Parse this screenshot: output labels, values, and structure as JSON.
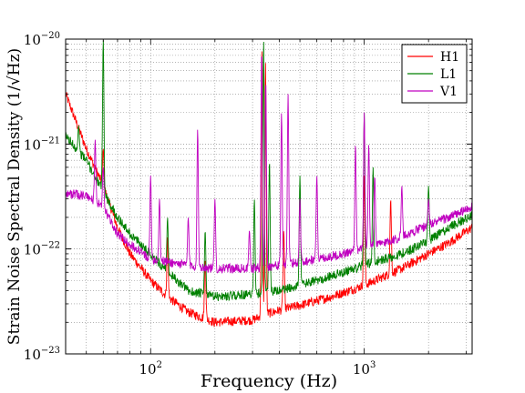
{
  "chart_data": {
    "type": "line",
    "xlabel": "Frequency (Hz)",
    "ylabel": "Strain Noise Spectral Density (1/√Hz)",
    "x_scale": "log",
    "y_scale": "log",
    "xlim": [
      40,
      3200
    ],
    "ylim": [
      1e-23,
      1e-20
    ],
    "x_ticks": [
      {
        "value": 100,
        "label": "10",
        "exp": "2"
      },
      {
        "value": 1000,
        "label": "10",
        "exp": "3"
      }
    ],
    "y_ticks": [
      {
        "value": 1e-23,
        "label": "10",
        "exp": "−23"
      },
      {
        "value": 1e-22,
        "label": "10",
        "exp": "−22"
      },
      {
        "value": 1e-21,
        "label": "10",
        "exp": "−21"
      },
      {
        "value": 1e-20,
        "label": "10",
        "exp": "−20"
      }
    ],
    "grid": true,
    "legend_position": "top-right",
    "series": [
      {
        "name": "H1",
        "color": "#ff0000",
        "points": [
          [
            40,
            3e-21
          ],
          [
            50,
            9e-22
          ],
          [
            60,
            4e-22
          ],
          [
            70,
            1.6e-22
          ],
          [
            80,
            9e-23
          ],
          [
            100,
            5e-23
          ],
          [
            120,
            3.5e-23
          ],
          [
            150,
            2.5e-23
          ],
          [
            200,
            2e-23
          ],
          [
            300,
            2.1e-23
          ],
          [
            350,
            2.4e-23
          ],
          [
            400,
            2.6e-23
          ],
          [
            500,
            2.9e-23
          ],
          [
            700,
            3.5e-23
          ],
          [
            1000,
            4.5e-23
          ],
          [
            1500,
            6.5e-23
          ],
          [
            2000,
            9e-23
          ],
          [
            2500,
            1.15e-22
          ],
          [
            3200,
            1.6e-22
          ]
        ],
        "peaks": [
          [
            46,
            1.2e-21
          ],
          [
            60,
            9e-22
          ],
          [
            120,
            1.3e-22
          ],
          [
            180,
            8e-23
          ],
          [
            332,
            8e-21
          ],
          [
            345,
            6e-21
          ],
          [
            420,
            1.5e-22
          ],
          [
            1000,
            5e-22
          ],
          [
            1330,
            3e-22
          ]
        ]
      },
      {
        "name": "L1",
        "color": "#008000",
        "points": [
          [
            40,
            1.2e-21
          ],
          [
            50,
            7e-22
          ],
          [
            60,
            3.5e-22
          ],
          [
            70,
            2e-22
          ],
          [
            80,
            1.4e-22
          ],
          [
            100,
            9e-23
          ],
          [
            120,
            6e-23
          ],
          [
            150,
            4e-23
          ],
          [
            200,
            3.5e-23
          ],
          [
            300,
            3.7e-23
          ],
          [
            400,
            4e-23
          ],
          [
            500,
            4.5e-23
          ],
          [
            700,
            5.5e-23
          ],
          [
            1000,
            7e-23
          ],
          [
            1500,
            9e-23
          ],
          [
            2000,
            1.2e-22
          ],
          [
            2500,
            1.6e-22
          ],
          [
            3200,
            2.1e-22
          ]
        ],
        "peaks": [
          [
            46,
            1.5e-21
          ],
          [
            60,
            1e-20
          ],
          [
            120,
            2e-22
          ],
          [
            180,
            1.5e-22
          ],
          [
            306,
            3e-22
          ],
          [
            338,
            1e-20
          ],
          [
            360,
            7e-22
          ],
          [
            500,
            5e-22
          ],
          [
            1000,
            2e-21
          ],
          [
            1100,
            6e-22
          ],
          [
            2000,
            4e-22
          ]
        ]
      },
      {
        "name": "V1",
        "color": "#c000c0",
        "points": [
          [
            40,
            3.4e-22
          ],
          [
            50,
            3.2e-22
          ],
          [
            60,
            2.5e-22
          ],
          [
            70,
            1.4e-22
          ],
          [
            80,
            1.1e-22
          ],
          [
            100,
            8e-23
          ],
          [
            150,
            7e-23
          ],
          [
            200,
            6.5e-23
          ],
          [
            300,
            6.5e-23
          ],
          [
            400,
            7e-23
          ],
          [
            500,
            7.5e-23
          ],
          [
            700,
            8.5e-23
          ],
          [
            1000,
            1e-22
          ],
          [
            1500,
            1.3e-22
          ],
          [
            2000,
            1.7e-22
          ],
          [
            2500,
            2e-22
          ],
          [
            3200,
            2.5e-22
          ]
        ],
        "peaks": [
          [
            55,
            1.1e-21
          ],
          [
            60,
            6e-22
          ],
          [
            100,
            5e-22
          ],
          [
            110,
            3e-22
          ],
          [
            150,
            2e-22
          ],
          [
            166,
            1.4e-21
          ],
          [
            200,
            3e-22
          ],
          [
            290,
            1.5e-22
          ],
          [
            331,
            8e-21
          ],
          [
            346,
            4e-21
          ],
          [
            410,
            2e-21
          ],
          [
            440,
            3e-21
          ],
          [
            500,
            3e-22
          ],
          [
            600,
            5e-22
          ],
          [
            910,
            1e-21
          ],
          [
            1000,
            2e-21
          ],
          [
            1050,
            1e-21
          ],
          [
            1120,
            5e-22
          ],
          [
            1500,
            4e-22
          ],
          [
            2000,
            3e-22
          ]
        ]
      }
    ]
  }
}
